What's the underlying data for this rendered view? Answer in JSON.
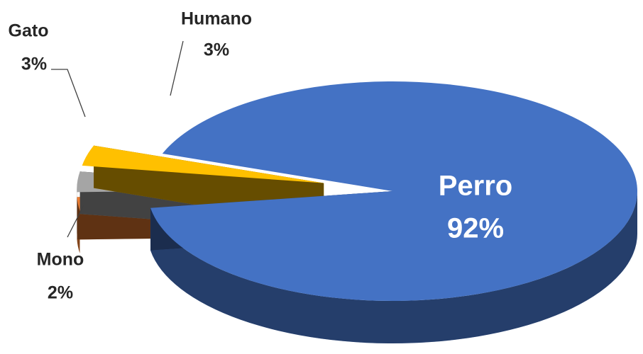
{
  "chart_data": {
    "type": "pie",
    "categories": [
      "Perro",
      "Mono",
      "Gato",
      "Humano"
    ],
    "values": [
      92,
      2,
      3,
      3
    ],
    "value_labels": [
      "92%",
      "2%",
      "3%",
      "3%"
    ],
    "colors": [
      "#4472c4",
      "#ed7d31",
      "#a5a5a5",
      "#ffc000"
    ]
  }
}
